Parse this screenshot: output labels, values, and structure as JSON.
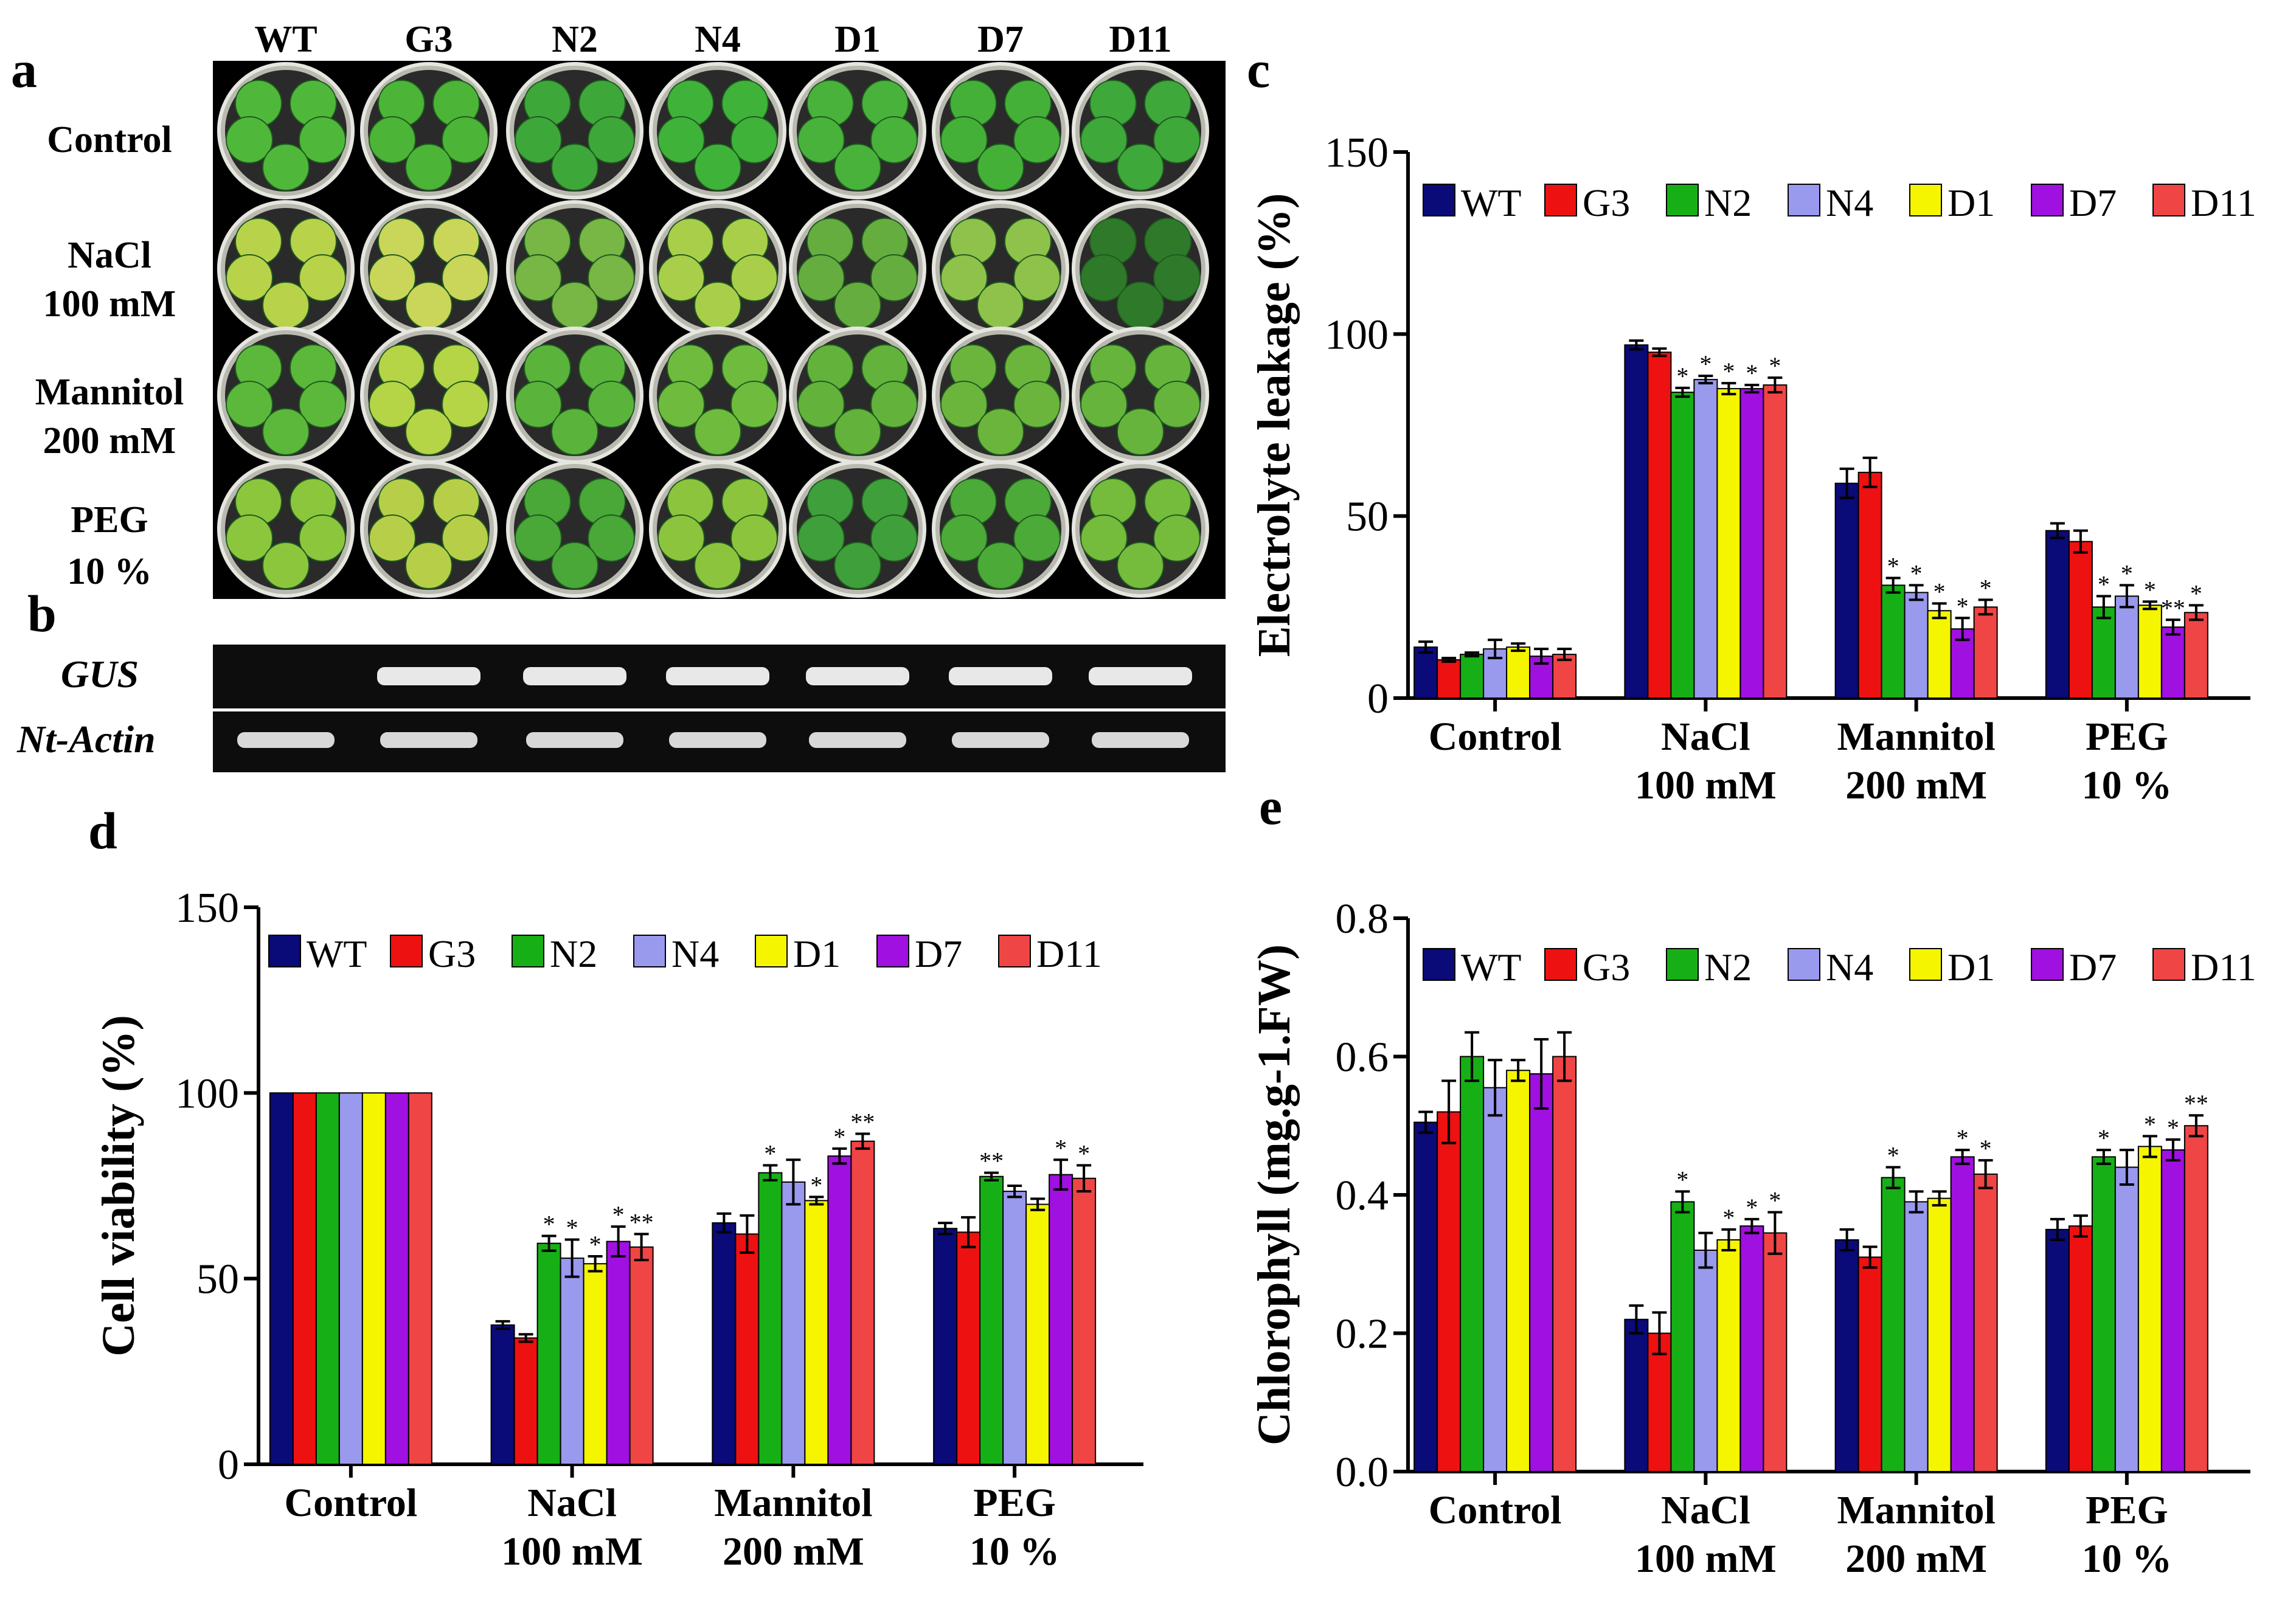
{
  "panel_labels": [
    "a",
    "b",
    "c",
    "d",
    "e"
  ],
  "series_names": [
    "WT",
    "G3",
    "N2",
    "N4",
    "D1",
    "D7",
    "D11"
  ],
  "series_colors": [
    "#0a0a78",
    "#ee1111",
    "#16b016",
    "#9999ee",
    "#f5f500",
    "#a010e0",
    "#f04545"
  ],
  "panel_a": {
    "column_labels": [
      "WT",
      "G3",
      "N2",
      "N4",
      "D1",
      "D7",
      "D11"
    ],
    "row_labels": [
      [
        "Control"
      ],
      [
        "NaCl",
        "100 mM"
      ],
      [
        "Mannitol",
        "200 mM"
      ],
      [
        "PEG",
        "10 %"
      ]
    ]
  },
  "panel_b": {
    "gel_labels": [
      "GUS",
      "Nt-Actin"
    ]
  },
  "chart_data": [
    {
      "panel": "c",
      "type": "bar",
      "title": "",
      "xlabel": "",
      "ylabel": "Electrolyte leakage (%)",
      "ylim": [
        0,
        150
      ],
      "yticks": [
        "0",
        "50",
        "100",
        "150"
      ],
      "categories": [
        [
          "Control"
        ],
        [
          "NaCl",
          "100 mM"
        ],
        [
          "Mannitol",
          "200 mM"
        ],
        [
          "PEG",
          "10 %"
        ]
      ],
      "series": [
        {
          "name": "WT",
          "color": "#0a0a78",
          "values": [
            14,
            97,
            59,
            46
          ],
          "errors": [
            1.5,
            1.2,
            4,
            2
          ],
          "sig": [
            "",
            "",
            "",
            ""
          ]
        },
        {
          "name": "G3",
          "color": "#ee1111",
          "values": [
            10.5,
            95,
            62,
            43
          ],
          "errors": [
            0.5,
            1,
            4,
            3
          ],
          "sig": [
            "",
            "",
            "",
            ""
          ]
        },
        {
          "name": "N2",
          "color": "#16b016",
          "values": [
            12,
            84,
            31,
            25
          ],
          "errors": [
            0.5,
            1.2,
            2,
            3
          ],
          "sig": [
            "",
            "*",
            "*",
            "*"
          ]
        },
        {
          "name": "N4",
          "color": "#9999ee",
          "values": [
            13.5,
            87.5,
            29,
            28
          ],
          "errors": [
            2.5,
            1,
            2,
            3
          ],
          "sig": [
            "",
            "*",
            "*",
            "*"
          ]
        },
        {
          "name": "D1",
          "color": "#f5f500",
          "values": [
            14,
            85,
            24,
            25.5
          ],
          "errors": [
            1,
            1.5,
            2,
            1
          ],
          "sig": [
            "",
            "*",
            "*",
            "*"
          ]
        },
        {
          "name": "D7",
          "color": "#a010e0",
          "values": [
            11.5,
            85,
            19,
            19.5
          ],
          "errors": [
            2,
            1,
            3,
            2
          ],
          "sig": [
            "",
            "*",
            "*",
            "**"
          ]
        },
        {
          "name": "D11",
          "color": "#f04545",
          "values": [
            12,
            86,
            25,
            23.5
          ],
          "errors": [
            1.5,
            2,
            2,
            2
          ],
          "sig": [
            "",
            "*",
            "*",
            "*"
          ]
        }
      ]
    },
    {
      "panel": "d",
      "type": "bar",
      "title": "",
      "xlabel": "",
      "ylabel": "Cell viability (%)",
      "ylim": [
        0,
        150
      ],
      "yticks": [
        "0",
        "50",
        "100",
        "150"
      ],
      "categories": [
        [
          "Control"
        ],
        [
          "NaCl",
          "100 mM"
        ],
        [
          "Mannitol",
          "200 mM"
        ],
        [
          "PEG",
          "10 %"
        ]
      ],
      "series": [
        {
          "name": "WT",
          "color": "#0a0a78",
          "values": [
            100,
            37.5,
            65,
            63.5
          ],
          "errors": [
            0,
            1,
            2.5,
            1.5
          ],
          "sig": [
            "",
            "",
            "",
            ""
          ]
        },
        {
          "name": "G3",
          "color": "#ee1111",
          "values": [
            100,
            34,
            62,
            62.5
          ],
          "errors": [
            0,
            1,
            5,
            4
          ],
          "sig": [
            "",
            "",
            "",
            ""
          ]
        },
        {
          "name": "N2",
          "color": "#16b016",
          "values": [
            100,
            59.5,
            78.5,
            77.5
          ],
          "errors": [
            0,
            2,
            2,
            1
          ],
          "sig": [
            "",
            "*",
            "*",
            "**"
          ]
        },
        {
          "name": "N4",
          "color": "#9999ee",
          "values": [
            100,
            55.5,
            76,
            73.5
          ],
          "errors": [
            0,
            5,
            6,
            1.5
          ],
          "sig": [
            "",
            "*",
            "",
            ""
          ]
        },
        {
          "name": "D1",
          "color": "#f5f500",
          "values": [
            100,
            54,
            71,
            70
          ],
          "errors": [
            0,
            2,
            1,
            1.5
          ],
          "sig": [
            "",
            "*",
            "*",
            ""
          ]
        },
        {
          "name": "D7",
          "color": "#a010e0",
          "values": [
            100,
            60,
            83,
            78
          ],
          "errors": [
            0,
            4,
            2,
            4
          ],
          "sig": [
            "",
            "*",
            "*",
            "*"
          ]
        },
        {
          "name": "D11",
          "color": "#f04545",
          "values": [
            100,
            58.5,
            87,
            77
          ],
          "errors": [
            0,
            3.5,
            2,
            3.5
          ],
          "sig": [
            "",
            "**",
            "**",
            "*"
          ]
        }
      ]
    },
    {
      "panel": "e",
      "type": "bar",
      "title": "",
      "xlabel": "",
      "ylabel": "Chlorophyll (mg.g-1.FW)",
      "ylim": [
        0,
        0.8
      ],
      "yticks": [
        "0.0",
        "0.2",
        "0.4",
        "0.6",
        "0.8"
      ],
      "categories": [
        [
          "Control"
        ],
        [
          "NaCl",
          "100 mM"
        ],
        [
          "Mannitol",
          "200 mM"
        ],
        [
          "PEG",
          "10 %"
        ]
      ],
      "series": [
        {
          "name": "WT",
          "color": "#0a0a78",
          "values": [
            0.505,
            0.22,
            0.335,
            0.35
          ],
          "errors": [
            0.015,
            0.02,
            0.015,
            0.015
          ],
          "sig": [
            "",
            "",
            "",
            ""
          ]
        },
        {
          "name": "G3",
          "color": "#ee1111",
          "values": [
            0.52,
            0.2,
            0.31,
            0.355
          ],
          "errors": [
            0.045,
            0.03,
            0.015,
            0.015
          ],
          "sig": [
            "",
            "",
            "",
            ""
          ]
        },
        {
          "name": "N2",
          "color": "#16b016",
          "values": [
            0.6,
            0.39,
            0.425,
            0.455
          ],
          "errors": [
            0.035,
            0.015,
            0.015,
            0.01
          ],
          "sig": [
            "",
            "*",
            "*",
            "*"
          ]
        },
        {
          "name": "N4",
          "color": "#9999ee",
          "values": [
            0.555,
            0.32,
            0.39,
            0.44
          ],
          "errors": [
            0.04,
            0.025,
            0.015,
            0.025
          ],
          "sig": [
            "",
            "",
            "",
            ""
          ]
        },
        {
          "name": "D1",
          "color": "#f5f500",
          "values": [
            0.58,
            0.335,
            0.395,
            0.47
          ],
          "errors": [
            0.015,
            0.015,
            0.01,
            0.015
          ],
          "sig": [
            "",
            "*",
            "",
            "*"
          ]
        },
        {
          "name": "D7",
          "color": "#a010e0",
          "values": [
            0.575,
            0.355,
            0.455,
            0.465
          ],
          "errors": [
            0.05,
            0.01,
            0.01,
            0.015
          ],
          "sig": [
            "",
            "*",
            "*",
            "*"
          ]
        },
        {
          "name": "D11",
          "color": "#f04545",
          "values": [
            0.6,
            0.345,
            0.43,
            0.5
          ],
          "errors": [
            0.035,
            0.03,
            0.02,
            0.015
          ],
          "sig": [
            "",
            "*",
            "*",
            "**"
          ]
        }
      ]
    }
  ]
}
